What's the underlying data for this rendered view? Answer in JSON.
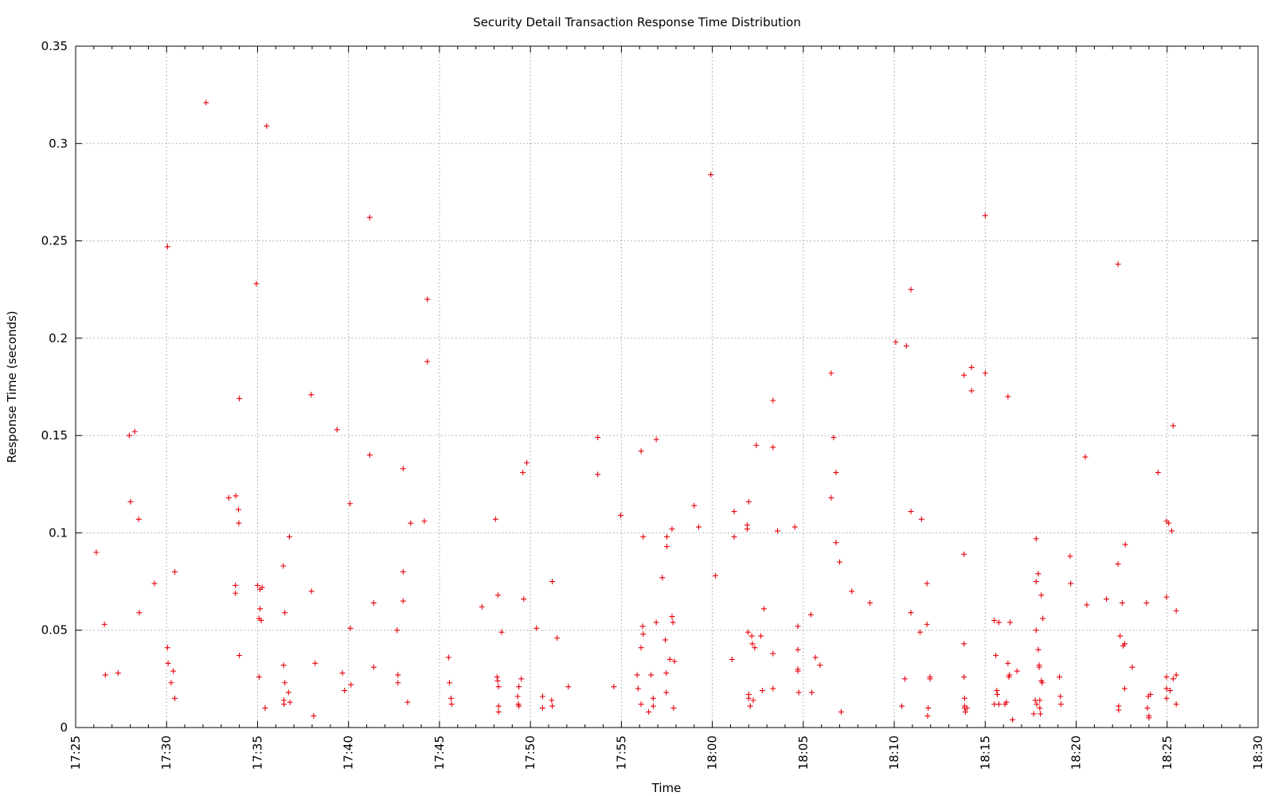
{
  "chart_data": {
    "type": "scatter",
    "title": "Security Detail Transaction Response Time Distribution",
    "xlabel": "Time",
    "ylabel": "Response Time (seconds)",
    "x_ticks": [
      "17:25",
      "17:30",
      "17:35",
      "17:40",
      "17:45",
      "17:50",
      "17:55",
      "18:00",
      "18:05",
      "18:10",
      "18:15",
      "18:20",
      "18:25",
      "18:30"
    ],
    "y_ticks": [
      "0",
      "0.05",
      "0.1",
      "0.15",
      "0.2",
      "0.25",
      "0.3",
      "0.35"
    ],
    "xlim": [
      "17:25",
      "18:30"
    ],
    "ylim": [
      0,
      0.35
    ],
    "grid": true,
    "marker": "+",
    "color": "#e8000b",
    "points": [
      [
        "17:26:08",
        0.09
      ],
      [
        "17:26:35",
        0.053
      ],
      [
        "17:26:38",
        0.027
      ],
      [
        "17:27:20",
        0.028
      ],
      [
        "17:27:57",
        0.15
      ],
      [
        "17:28:01",
        0.116
      ],
      [
        "17:28:15",
        0.152
      ],
      [
        "17:28:28",
        0.107
      ],
      [
        "17:28:30",
        0.059
      ],
      [
        "17:29:20",
        0.074
      ],
      [
        "17:30:03",
        0.247
      ],
      [
        "17:30:03",
        0.041
      ],
      [
        "17:30:05",
        0.033
      ],
      [
        "17:30:15",
        0.023
      ],
      [
        "17:30:22",
        0.029
      ],
      [
        "17:30:27",
        0.015
      ],
      [
        "17:30:27",
        0.08
      ],
      [
        "17:32:10",
        0.321
      ],
      [
        "17:33:25",
        0.118
      ],
      [
        "17:33:48",
        0.119
      ],
      [
        "17:33:47",
        0.073
      ],
      [
        "17:33:47",
        0.069
      ],
      [
        "17:33:57",
        0.112
      ],
      [
        "17:33:58",
        0.105
      ],
      [
        "17:34:00",
        0.169
      ],
      [
        "17:34:00",
        0.037
      ],
      [
        "17:34:56",
        0.228
      ],
      [
        "17:35:00",
        0.073
      ],
      [
        "17:35:05",
        0.056
      ],
      [
        "17:35:05",
        0.026
      ],
      [
        "17:35:08",
        0.061
      ],
      [
        "17:35:08",
        0.071
      ],
      [
        "17:35:12",
        0.055
      ],
      [
        "17:35:15",
        0.072
      ],
      [
        "17:35:25",
        0.01
      ],
      [
        "17:35:30",
        0.309
      ],
      [
        "17:36:25",
        0.083
      ],
      [
        "17:36:26",
        0.032
      ],
      [
        "17:36:27",
        0.014
      ],
      [
        "17:36:27",
        0.012
      ],
      [
        "17:36:30",
        0.059
      ],
      [
        "17:36:30",
        0.023
      ],
      [
        "17:36:42",
        0.018
      ],
      [
        "17:36:45",
        0.098
      ],
      [
        "17:36:47",
        0.013
      ],
      [
        "17:37:57",
        0.171
      ],
      [
        "17:37:58",
        0.07
      ],
      [
        "17:38:05",
        0.006
      ],
      [
        "17:38:10",
        0.033
      ],
      [
        "17:39:22",
        0.153
      ],
      [
        "17:39:40",
        0.028
      ],
      [
        "17:39:47",
        0.019
      ],
      [
        "17:40:05",
        0.115
      ],
      [
        "17:40:06",
        0.051
      ],
      [
        "17:40:08",
        0.022
      ],
      [
        "17:41:10",
        0.14
      ],
      [
        "17:41:10",
        0.262
      ],
      [
        "17:41:23",
        0.064
      ],
      [
        "17:41:23",
        0.031
      ],
      [
        "17:42:40",
        0.05
      ],
      [
        "17:42:43",
        0.027
      ],
      [
        "17:42:43",
        0.023
      ],
      [
        "17:43:00",
        0.133
      ],
      [
        "17:43:00",
        0.08
      ],
      [
        "17:43:00",
        0.065
      ],
      [
        "17:43:15",
        0.013
      ],
      [
        "17:43:25",
        0.105
      ],
      [
        "17:44:10",
        0.106
      ],
      [
        "17:44:20",
        0.22
      ],
      [
        "17:44:20",
        0.188
      ],
      [
        "17:45:30",
        0.036
      ],
      [
        "17:45:33",
        0.023
      ],
      [
        "17:45:38",
        0.015
      ],
      [
        "17:45:40",
        0.012
      ],
      [
        "17:47:20",
        0.062
      ],
      [
        "17:48:05",
        0.107
      ],
      [
        "17:48:10",
        0.026
      ],
      [
        "17:48:12",
        0.024
      ],
      [
        "17:48:13",
        0.068
      ],
      [
        "17:48:15",
        0.021
      ],
      [
        "17:48:15",
        0.011
      ],
      [
        "17:48:15",
        0.008
      ],
      [
        "17:48:25",
        0.049
      ],
      [
        "17:49:18",
        0.016
      ],
      [
        "17:49:20",
        0.012
      ],
      [
        "17:49:22",
        0.011
      ],
      [
        "17:49:22",
        0.021
      ],
      [
        "17:49:30",
        0.025
      ],
      [
        "17:49:35",
        0.131
      ],
      [
        "17:49:38",
        0.066
      ],
      [
        "17:49:48",
        0.136
      ],
      [
        "17:50:20",
        0.051
      ],
      [
        "17:50:40",
        0.016
      ],
      [
        "17:50:40",
        0.01
      ],
      [
        "17:51:10",
        0.014
      ],
      [
        "17:51:12",
        0.011
      ],
      [
        "17:51:12",
        0.075
      ],
      [
        "17:51:28",
        0.046
      ],
      [
        "17:52:05",
        0.021
      ],
      [
        "17:53:42",
        0.13
      ],
      [
        "17:53:42",
        0.149
      ],
      [
        "17:54:35",
        0.021
      ],
      [
        "17:54:58",
        0.109
      ],
      [
        "17:55:52",
        0.027
      ],
      [
        "17:55:55",
        0.02
      ],
      [
        "17:56:05",
        0.142
      ],
      [
        "17:56:05",
        0.041
      ],
      [
        "17:56:05",
        0.012
      ],
      [
        "17:56:10",
        0.052
      ],
      [
        "17:56:12",
        0.048
      ],
      [
        "17:56:12",
        0.098
      ],
      [
        "17:56:30",
        0.008
      ],
      [
        "17:56:38",
        0.027
      ],
      [
        "17:56:45",
        0.015
      ],
      [
        "17:56:45",
        0.011
      ],
      [
        "17:56:55",
        0.148
      ],
      [
        "17:56:55",
        0.054
      ],
      [
        "17:57:15",
        0.077
      ],
      [
        "17:57:25",
        0.045
      ],
      [
        "17:57:28",
        0.028
      ],
      [
        "17:57:28",
        0.018
      ],
      [
        "17:57:30",
        0.093
      ],
      [
        "17:57:30",
        0.098
      ],
      [
        "17:57:40",
        0.035
      ],
      [
        "17:57:47",
        0.102
      ],
      [
        "17:57:47",
        0.057
      ],
      [
        "17:57:50",
        0.054
      ],
      [
        "17:57:52",
        0.01
      ],
      [
        "17:57:55",
        0.034
      ],
      [
        "17:59:00",
        0.114
      ],
      [
        "17:59:15",
        0.103
      ],
      [
        "17:59:55",
        0.284
      ],
      [
        "18:00:10",
        0.078
      ],
      [
        "18:01:05",
        0.035
      ],
      [
        "18:01:12",
        0.111
      ],
      [
        "18:01:12",
        0.098
      ],
      [
        "18:01:55",
        0.104
      ],
      [
        "18:01:55",
        0.102
      ],
      [
        "18:01:58",
        0.049
      ],
      [
        "18:02:00",
        0.116
      ],
      [
        "18:02:00",
        0.017
      ],
      [
        "18:02:00",
        0.015
      ],
      [
        "18:02:05",
        0.011
      ],
      [
        "18:02:10",
        0.047
      ],
      [
        "18:02:12",
        0.043
      ],
      [
        "18:02:15",
        0.014
      ],
      [
        "18:02:20",
        0.041
      ],
      [
        "18:02:25",
        0.145
      ],
      [
        "18:02:40",
        0.047
      ],
      [
        "18:02:45",
        0.019
      ],
      [
        "18:02:50",
        0.061
      ],
      [
        "18:03:20",
        0.168
      ],
      [
        "18:03:20",
        0.144
      ],
      [
        "18:03:20",
        0.038
      ],
      [
        "18:03:20",
        0.02
      ],
      [
        "18:03:35",
        0.101
      ],
      [
        "18:04:32",
        0.103
      ],
      [
        "18:04:42",
        0.052
      ],
      [
        "18:04:42",
        0.04
      ],
      [
        "18:04:42",
        0.03
      ],
      [
        "18:04:42",
        0.029
      ],
      [
        "18:04:45",
        0.018
      ],
      [
        "18:05:25",
        0.058
      ],
      [
        "18:05:28",
        0.018
      ],
      [
        "18:05:40",
        0.036
      ],
      [
        "18:05:55",
        0.032
      ],
      [
        "18:06:32",
        0.182
      ],
      [
        "18:06:32",
        0.118
      ],
      [
        "18:06:40",
        0.149
      ],
      [
        "18:06:48",
        0.131
      ],
      [
        "18:06:48",
        0.095
      ],
      [
        "18:07:00",
        0.085
      ],
      [
        "18:07:05",
        0.008
      ],
      [
        "18:07:40",
        0.07
      ],
      [
        "18:08:40",
        0.064
      ],
      [
        "18:10:05",
        0.198
      ],
      [
        "18:10:25",
        0.011
      ],
      [
        "18:10:35",
        0.025
      ],
      [
        "18:10:40",
        0.196
      ],
      [
        "18:10:55",
        0.225
      ],
      [
        "18:10:55",
        0.111
      ],
      [
        "18:10:55",
        0.059
      ],
      [
        "18:11:25",
        0.049
      ],
      [
        "18:11:30",
        0.107
      ],
      [
        "18:11:48",
        0.074
      ],
      [
        "18:11:48",
        0.053
      ],
      [
        "18:11:50",
        0.006
      ],
      [
        "18:11:52",
        0.01
      ],
      [
        "18:11:58",
        0.026
      ],
      [
        "18:11:58",
        0.025
      ],
      [
        "18:13:50",
        0.181
      ],
      [
        "18:13:50",
        0.089
      ],
      [
        "18:13:50",
        0.043
      ],
      [
        "18:13:50",
        0.026
      ],
      [
        "18:13:52",
        0.015
      ],
      [
        "18:13:52",
        0.011
      ],
      [
        "18:13:52",
        0.01
      ],
      [
        "18:13:55",
        0.008
      ],
      [
        "18:14:00",
        0.01
      ],
      [
        "18:14:15",
        0.185
      ],
      [
        "18:14:15",
        0.173
      ],
      [
        "18:15:00",
        0.263
      ],
      [
        "18:15:00",
        0.182
      ],
      [
        "18:15:30",
        0.055
      ],
      [
        "18:15:30",
        0.012
      ],
      [
        "18:15:35",
        0.037
      ],
      [
        "18:15:38",
        0.019
      ],
      [
        "18:15:40",
        0.017
      ],
      [
        "18:15:45",
        0.054
      ],
      [
        "18:15:45",
        0.012
      ],
      [
        "18:16:05",
        0.012
      ],
      [
        "18:16:10",
        0.013
      ],
      [
        "18:16:15",
        0.17
      ],
      [
        "18:16:15",
        0.033
      ],
      [
        "18:16:18",
        0.026
      ],
      [
        "18:16:20",
        0.027
      ],
      [
        "18:16:22",
        0.054
      ],
      [
        "18:16:30",
        0.004
      ],
      [
        "18:16:45",
        0.029
      ],
      [
        "18:17:40",
        0.007
      ],
      [
        "18:17:45",
        0.014
      ],
      [
        "18:17:48",
        0.097
      ],
      [
        "18:17:48",
        0.075
      ],
      [
        "18:17:48",
        0.05
      ],
      [
        "18:17:50",
        0.012
      ],
      [
        "18:17:55",
        0.079
      ],
      [
        "18:17:55",
        0.04
      ],
      [
        "18:17:58",
        0.032
      ],
      [
        "18:17:58",
        0.031
      ],
      [
        "18:18:00",
        0.014
      ],
      [
        "18:18:00",
        0.01
      ],
      [
        "18:18:02",
        0.007
      ],
      [
        "18:18:05",
        0.068
      ],
      [
        "18:18:05",
        0.024
      ],
      [
        "18:18:08",
        0.023
      ],
      [
        "18:18:10",
        0.056
      ],
      [
        "18:19:05",
        0.026
      ],
      [
        "18:19:08",
        0.016
      ],
      [
        "18:19:10",
        0.012
      ],
      [
        "18:19:40",
        0.088
      ],
      [
        "18:19:42",
        0.074
      ],
      [
        "18:20:30",
        0.139
      ],
      [
        "18:20:35",
        0.063
      ],
      [
        "18:21:40",
        0.066
      ],
      [
        "18:22:18",
        0.238
      ],
      [
        "18:22:18",
        0.084
      ],
      [
        "18:22:20",
        0.011
      ],
      [
        "18:22:20",
        0.009
      ],
      [
        "18:22:25",
        0.047
      ],
      [
        "18:22:32",
        0.064
      ],
      [
        "18:22:35",
        0.042
      ],
      [
        "18:22:40",
        0.02
      ],
      [
        "18:22:40",
        0.043
      ],
      [
        "18:22:42",
        0.094
      ],
      [
        "18:23:05",
        0.031
      ],
      [
        "18:23:52",
        0.064
      ],
      [
        "18:23:55",
        0.01
      ],
      [
        "18:23:58",
        0.016
      ],
      [
        "18:24:00",
        0.006
      ],
      [
        "18:24:00",
        0.005
      ],
      [
        "18:24:05",
        0.017
      ],
      [
        "18:24:30",
        0.131
      ],
      [
        "18:24:58",
        0.106
      ],
      [
        "18:24:58",
        0.067
      ],
      [
        "18:24:58",
        0.026
      ],
      [
        "18:24:58",
        0.02
      ],
      [
        "18:24:58",
        0.015
      ],
      [
        "18:25:05",
        0.105
      ],
      [
        "18:25:10",
        0.019
      ],
      [
        "18:25:15",
        0.101
      ],
      [
        "18:25:20",
        0.155
      ],
      [
        "18:25:20",
        0.025
      ],
      [
        "18:25:30",
        0.06
      ],
      [
        "18:25:30",
        0.027
      ],
      [
        "18:25:30",
        0.012
      ]
    ]
  }
}
